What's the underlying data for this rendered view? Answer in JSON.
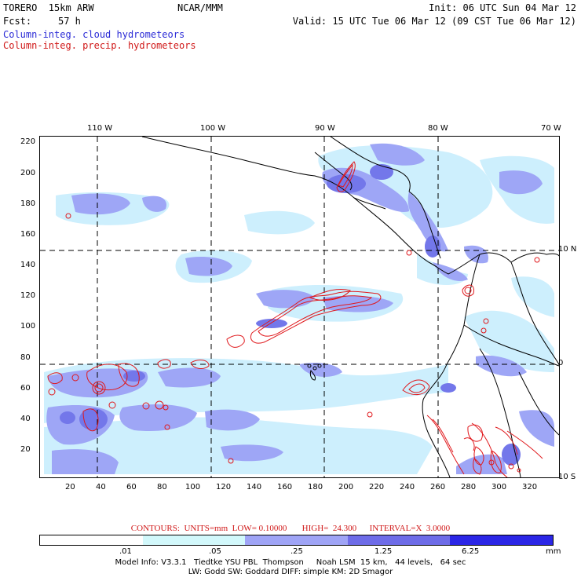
{
  "header": {
    "model": "TORERO  15km ARW",
    "org": "NCAR/MMM",
    "init": "Init: 06 UTC Sun 04 Mar 12",
    "fcst_label": "Fcst:",
    "fcst_value": "57 h",
    "valid": "Valid: 15 UTC Tue 06 Mar 12 (09 CST Tue 06 Mar 12)",
    "field_cloud": "Column-integ. cloud hydrometeors",
    "field_precip": "Column-integ. precip. hydrometeors"
  },
  "map": {
    "top_labels": [
      "110 W",
      "100 W",
      "90 W",
      "80 W",
      "70 W"
    ],
    "right_labels": [
      "10 N",
      "0",
      "10 S"
    ],
    "y_ticks": [
      "220",
      "200",
      "180",
      "160",
      "140",
      "120",
      "100",
      "80",
      "60",
      "40",
      "20"
    ],
    "x_ticks": [
      "20",
      "40",
      "60",
      "80",
      "100",
      "120",
      "140",
      "160",
      "180",
      "200",
      "220",
      "240",
      "260",
      "280",
      "300",
      "320"
    ],
    "colors": {
      "grid": "#000000",
      "coast": "#000000",
      "cloud_light": "#cdeffd",
      "cloud_mid": "#9ea6f6",
      "cloud_dark": "#7377ea",
      "precip_contour": "#e0181c"
    }
  },
  "contours_text": "CONTOURS:  UNITS=mm  LOW= 0.10000       HIGH=  24.300      INTERVAL=X  3.0000",
  "colorbar": {
    "colors": [
      "#ffffff",
      "#d2f8fb",
      "#9fa4f6",
      "#6e6ce8",
      "#2b26e6"
    ],
    "labels": [
      ".01",
      ".05",
      ".25",
      "1.25",
      "6.25",
      "mm"
    ]
  },
  "footer": {
    "line1": "Model Info: V3.3.1   Tiedtke YSU PBL  Thompson     Noah LSM  15 km,   44 levels,   64 sec",
    "line2": "LW: Godd SW: Goddard DIFF: simple KM: 2D Smagor"
  }
}
